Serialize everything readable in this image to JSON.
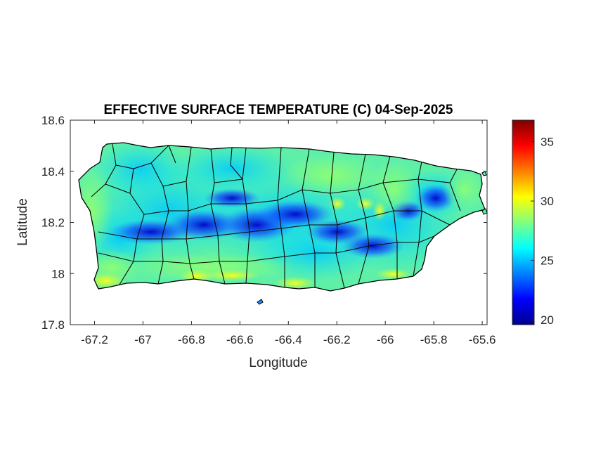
{
  "title": "EFFECTIVE SURFACE TEMPERATURE (C) 04-Sep-2025",
  "map": {
    "xlabel": "Longitude",
    "ylabel": "Latitude",
    "xlim": [
      -67.3,
      -65.58
    ],
    "ylim": [
      17.8,
      18.6
    ],
    "xticks": [
      -67.2,
      -67,
      -66.8,
      -66.6,
      -66.4,
      -66.2,
      -66,
      -65.8,
      -65.6
    ],
    "xtick_labels": [
      "-67.2",
      "-67",
      "-66.8",
      "-66.6",
      "-66.4",
      "-66.2",
      "-66",
      "-65.8",
      "-65.6"
    ],
    "yticks": [
      17.8,
      18,
      18.2,
      18.4,
      18.6
    ],
    "ytick_labels": [
      "17.8",
      "18",
      "18.2",
      "18.4",
      "18.6"
    ],
    "grid": false,
    "region": "Puerto Rico",
    "field": "effective surface temperature (C)",
    "pattern": "coolest (about 20-23 C) along the central mountain ridge; warmest (about 30-32 C) along the southern coast; mostly 26-29 C elsewhere"
  },
  "colorbar": {
    "colormap": "jet",
    "range": [
      19.6,
      36.8
    ],
    "ticks": [
      20,
      25,
      30,
      35
    ],
    "tick_labels": [
      "20",
      "25",
      "30",
      "35"
    ],
    "colors": [
      "#00008f",
      "#0000ff",
      "#0080ff",
      "#00ffff",
      "#80ff80",
      "#ffff00",
      "#ff8000",
      "#ff0000",
      "#800000"
    ]
  }
}
